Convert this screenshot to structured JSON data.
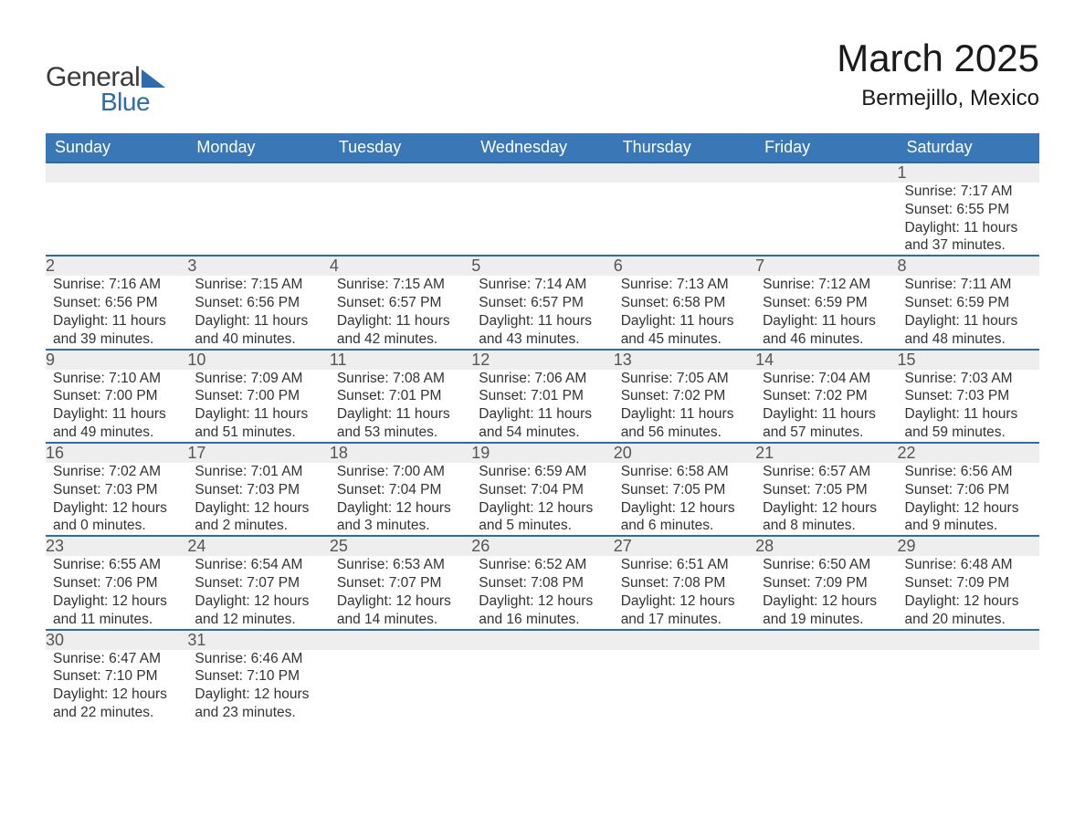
{
  "brand": {
    "name1": "General",
    "name2": "Blue",
    "accent_color": "#2e6bad"
  },
  "title": "March 2025",
  "subtitle": "Bermejillo, Mexico",
  "colors": {
    "header_bg": "#3a77b7",
    "header_text": "#ffffff",
    "row_divider": "#2e6bad",
    "daynum_bg": "#eeeeee",
    "daynum_text": "#555555",
    "body_text": "#333333",
    "background": "#ffffff"
  },
  "typography": {
    "title_fontsize": 42,
    "subtitle_fontsize": 24,
    "weekday_fontsize": 18,
    "daynum_fontsize": 18,
    "cell_fontsize": 15.5,
    "font_family": "Arial"
  },
  "weekdays": [
    "Sunday",
    "Monday",
    "Tuesday",
    "Wednesday",
    "Thursday",
    "Friday",
    "Saturday"
  ],
  "weeks": [
    [
      null,
      null,
      null,
      null,
      null,
      null,
      {
        "n": "1",
        "sunrise": "7:17 AM",
        "sunset": "6:55 PM",
        "dl1": "11 hours",
        "dl2": "and 37 minutes."
      }
    ],
    [
      {
        "n": "2",
        "sunrise": "7:16 AM",
        "sunset": "6:56 PM",
        "dl1": "11 hours",
        "dl2": "and 39 minutes."
      },
      {
        "n": "3",
        "sunrise": "7:15 AM",
        "sunset": "6:56 PM",
        "dl1": "11 hours",
        "dl2": "and 40 minutes."
      },
      {
        "n": "4",
        "sunrise": "7:15 AM",
        "sunset": "6:57 PM",
        "dl1": "11 hours",
        "dl2": "and 42 minutes."
      },
      {
        "n": "5",
        "sunrise": "7:14 AM",
        "sunset": "6:57 PM",
        "dl1": "11 hours",
        "dl2": "and 43 minutes."
      },
      {
        "n": "6",
        "sunrise": "7:13 AM",
        "sunset": "6:58 PM",
        "dl1": "11 hours",
        "dl2": "and 45 minutes."
      },
      {
        "n": "7",
        "sunrise": "7:12 AM",
        "sunset": "6:59 PM",
        "dl1": "11 hours",
        "dl2": "and 46 minutes."
      },
      {
        "n": "8",
        "sunrise": "7:11 AM",
        "sunset": "6:59 PM",
        "dl1": "11 hours",
        "dl2": "and 48 minutes."
      }
    ],
    [
      {
        "n": "9",
        "sunrise": "7:10 AM",
        "sunset": "7:00 PM",
        "dl1": "11 hours",
        "dl2": "and 49 minutes."
      },
      {
        "n": "10",
        "sunrise": "7:09 AM",
        "sunset": "7:00 PM",
        "dl1": "11 hours",
        "dl2": "and 51 minutes."
      },
      {
        "n": "11",
        "sunrise": "7:08 AM",
        "sunset": "7:01 PM",
        "dl1": "11 hours",
        "dl2": "and 53 minutes."
      },
      {
        "n": "12",
        "sunrise": "7:06 AM",
        "sunset": "7:01 PM",
        "dl1": "11 hours",
        "dl2": "and 54 minutes."
      },
      {
        "n": "13",
        "sunrise": "7:05 AM",
        "sunset": "7:02 PM",
        "dl1": "11 hours",
        "dl2": "and 56 minutes."
      },
      {
        "n": "14",
        "sunrise": "7:04 AM",
        "sunset": "7:02 PM",
        "dl1": "11 hours",
        "dl2": "and 57 minutes."
      },
      {
        "n": "15",
        "sunrise": "7:03 AM",
        "sunset": "7:03 PM",
        "dl1": "11 hours",
        "dl2": "and 59 minutes."
      }
    ],
    [
      {
        "n": "16",
        "sunrise": "7:02 AM",
        "sunset": "7:03 PM",
        "dl1": "12 hours",
        "dl2": "and 0 minutes."
      },
      {
        "n": "17",
        "sunrise": "7:01 AM",
        "sunset": "7:03 PM",
        "dl1": "12 hours",
        "dl2": "and 2 minutes."
      },
      {
        "n": "18",
        "sunrise": "7:00 AM",
        "sunset": "7:04 PM",
        "dl1": "12 hours",
        "dl2": "and 3 minutes."
      },
      {
        "n": "19",
        "sunrise": "6:59 AM",
        "sunset": "7:04 PM",
        "dl1": "12 hours",
        "dl2": "and 5 minutes."
      },
      {
        "n": "20",
        "sunrise": "6:58 AM",
        "sunset": "7:05 PM",
        "dl1": "12 hours",
        "dl2": "and 6 minutes."
      },
      {
        "n": "21",
        "sunrise": "6:57 AM",
        "sunset": "7:05 PM",
        "dl1": "12 hours",
        "dl2": "and 8 minutes."
      },
      {
        "n": "22",
        "sunrise": "6:56 AM",
        "sunset": "7:06 PM",
        "dl1": "12 hours",
        "dl2": "and 9 minutes."
      }
    ],
    [
      {
        "n": "23",
        "sunrise": "6:55 AM",
        "sunset": "7:06 PM",
        "dl1": "12 hours",
        "dl2": "and 11 minutes."
      },
      {
        "n": "24",
        "sunrise": "6:54 AM",
        "sunset": "7:07 PM",
        "dl1": "12 hours",
        "dl2": "and 12 minutes."
      },
      {
        "n": "25",
        "sunrise": "6:53 AM",
        "sunset": "7:07 PM",
        "dl1": "12 hours",
        "dl2": "and 14 minutes."
      },
      {
        "n": "26",
        "sunrise": "6:52 AM",
        "sunset": "7:08 PM",
        "dl1": "12 hours",
        "dl2": "and 16 minutes."
      },
      {
        "n": "27",
        "sunrise": "6:51 AM",
        "sunset": "7:08 PM",
        "dl1": "12 hours",
        "dl2": "and 17 minutes."
      },
      {
        "n": "28",
        "sunrise": "6:50 AM",
        "sunset": "7:09 PM",
        "dl1": "12 hours",
        "dl2": "and 19 minutes."
      },
      {
        "n": "29",
        "sunrise": "6:48 AM",
        "sunset": "7:09 PM",
        "dl1": "12 hours",
        "dl2": "and 20 minutes."
      }
    ],
    [
      {
        "n": "30",
        "sunrise": "6:47 AM",
        "sunset": "7:10 PM",
        "dl1": "12 hours",
        "dl2": "and 22 minutes."
      },
      {
        "n": "31",
        "sunrise": "6:46 AM",
        "sunset": "7:10 PM",
        "dl1": "12 hours",
        "dl2": "and 23 minutes."
      },
      null,
      null,
      null,
      null,
      null
    ]
  ],
  "labels": {
    "sunrise": "Sunrise: ",
    "sunset": "Sunset: ",
    "daylight": "Daylight: "
  }
}
